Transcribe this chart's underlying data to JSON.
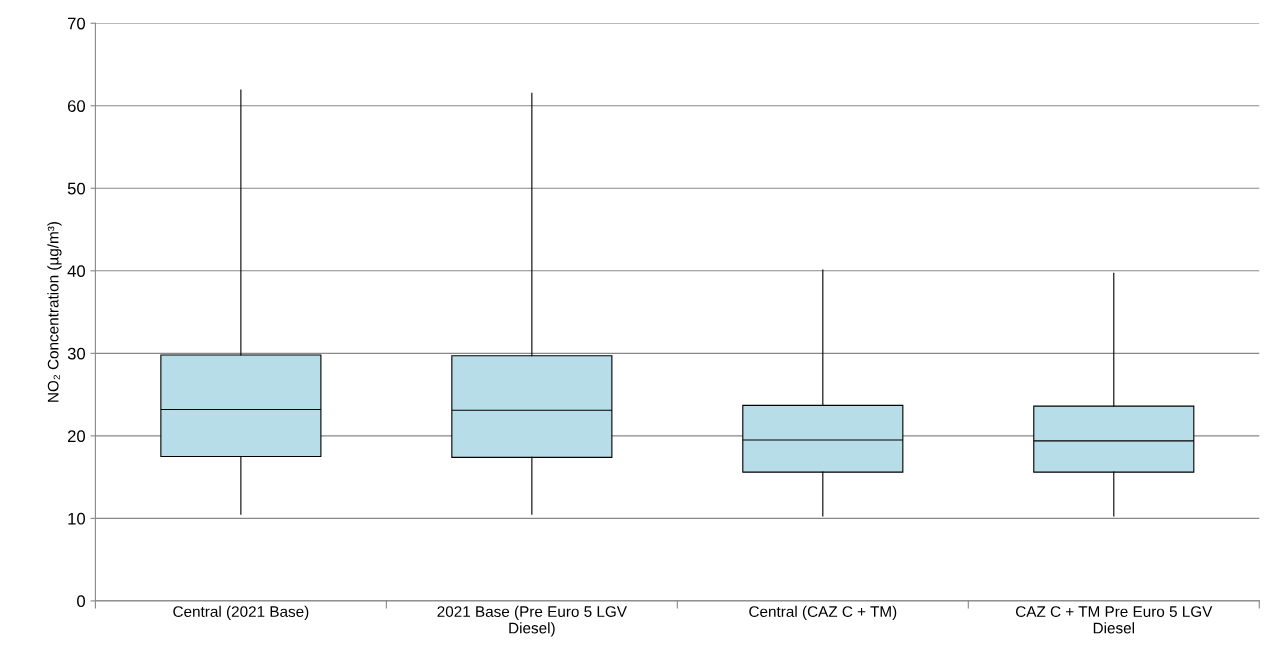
{
  "chart_data": {
    "type": "box",
    "ylabel": "NO₂ Concentration (µg/m³)",
    "categories": [
      "Central (2021 Base)",
      "2021 Base (Pre Euro 5 LGV\nDiesel)",
      "Central (CAZ C + TM)",
      "CAZ C + TM Pre Euro 5 LGV\nDiesel"
    ],
    "series": [
      {
        "color": "#b7dde8",
        "boxes": [
          {
            "low": 10.5,
            "q1": 17.5,
            "median": 23.2,
            "q3": 29.8,
            "high": 61.9
          },
          {
            "low": 10.5,
            "q1": 17.4,
            "median": 23.1,
            "q3": 29.7,
            "high": 61.5
          },
          {
            "low": 10.3,
            "q1": 15.6,
            "median": 19.5,
            "q3": 23.7,
            "high": 40.1
          },
          {
            "low": 10.3,
            "q1": 15.6,
            "median": 19.4,
            "q3": 23.6,
            "high": 39.7
          }
        ]
      }
    ],
    "ylim": [
      0,
      70
    ],
    "yticks": [
      0,
      10,
      20,
      30,
      40,
      50,
      60,
      70
    ],
    "grid": "y"
  }
}
